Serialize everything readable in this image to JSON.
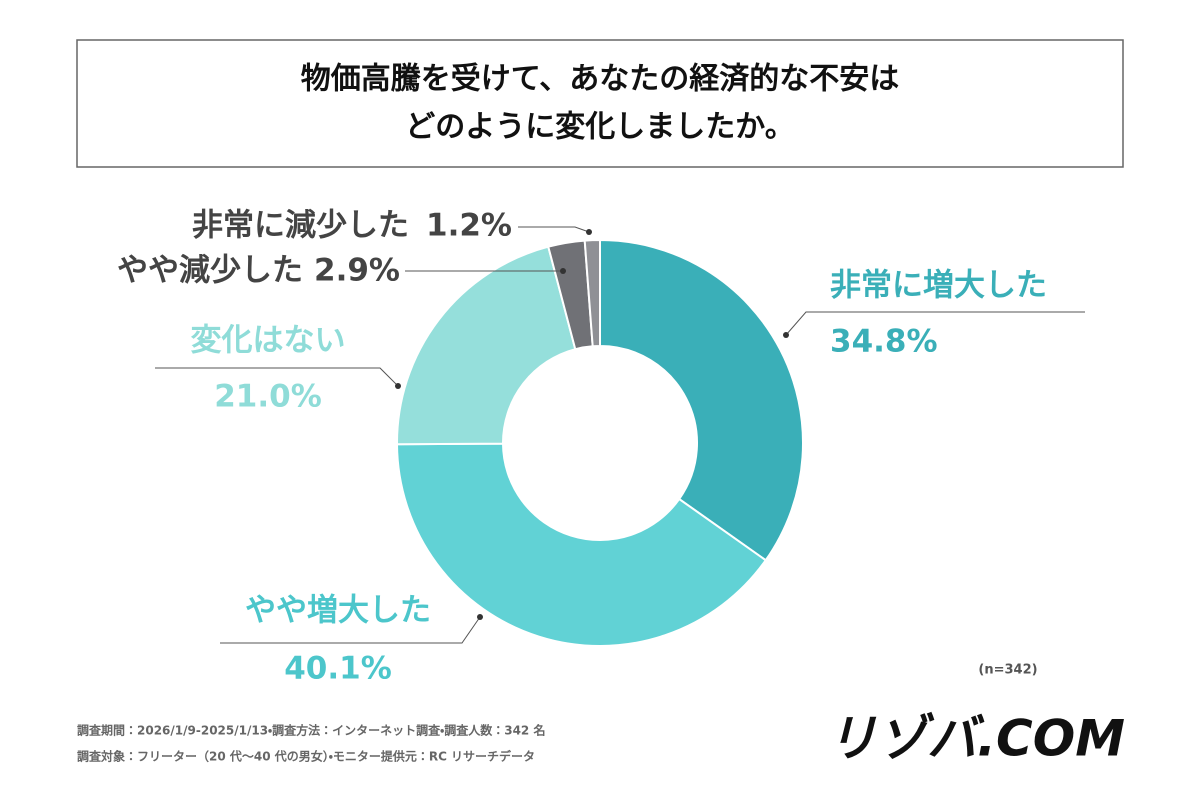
{
  "chart_data": {
    "type": "donut",
    "title": [
      "物価高騰を受けて、あなたの経済的な不安は",
      "どのように変化しましたか。"
    ],
    "categories": [
      "非常に増大した",
      "やや増大した",
      "変化はない",
      "やや減少した",
      "非常に減少した"
    ],
    "values": [
      34.8,
      40.1,
      21.0,
      2.9,
      1.2
    ],
    "value_labels": [
      "34.8%",
      "40.1%",
      "21.0%",
      "2.9%",
      "1.2%"
    ],
    "colors": [
      "#3aafb8",
      "#61d2d5",
      "#95dfdb",
      "#707176",
      "#8f9095"
    ],
    "label_colors": [
      "#3aafb8",
      "#4cc6cb",
      "#8fdcd8",
      "#444444",
      "#444444"
    ],
    "sample_note": "(n=342)",
    "notes": [
      "調査期間：2026/1/9-2025/1/13・調査方法：インターネット調査・調査人数：342 名",
      "調査対象：フリーター（20 代〜40 代の男女）・モニター提供元：RC リサーチデータ"
    ],
    "logo": "リゾバ.COM"
  }
}
